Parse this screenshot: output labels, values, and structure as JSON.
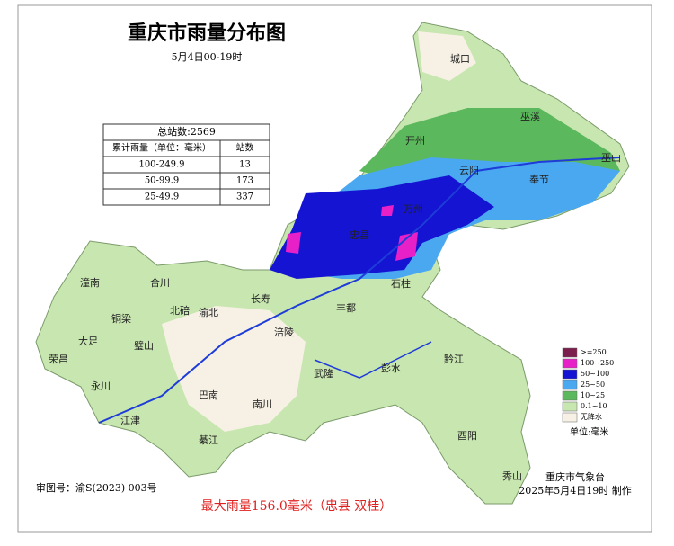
{
  "header": {
    "title": "重庆市雨量分布图",
    "subtitle": "5月4日00-19时"
  },
  "table": {
    "title": "总站数:2569",
    "columns": [
      "累计雨量（单位：毫米）",
      "站数"
    ],
    "rows": [
      [
        "100-249.9",
        13
      ],
      [
        "50-99.9",
        173
      ],
      [
        "25-49.9",
        337
      ]
    ]
  },
  "legend": {
    "items": [
      {
        "label": ">=250",
        "color": "#7b1e4e"
      },
      {
        "label": "100~250",
        "color": "#e820c8"
      },
      {
        "label": "50~100",
        "color": "#1414d2"
      },
      {
        "label": "25~50",
        "color": "#4aa8f0"
      },
      {
        "label": "10~25",
        "color": "#5cb85c"
      },
      {
        "label": "0.1~10",
        "color": "#c8e6b0"
      },
      {
        "label": "无降水",
        "color": "#f6f1e4"
      }
    ],
    "unit": "单位:毫米"
  },
  "places": [
    "城口",
    "巫溪",
    "开州",
    "巫山",
    "云阳",
    "奉节",
    "万州",
    "忠县",
    "石柱",
    "丰都",
    "长寿",
    "潼南",
    "合川",
    "铜梁",
    "北碚",
    "渝北",
    "大足",
    "璧山",
    "荣昌",
    "永川",
    "江津",
    "巴南",
    "涪陵",
    "武隆",
    "彭水",
    "黔江",
    "南川",
    "綦江",
    "酉阳",
    "秀山"
  ],
  "footer": {
    "review": "审图号：渝S(2023) 003号",
    "max": "最大雨量156.0毫米（忠县 双桂）",
    "agency": "重庆市气象台",
    "time": "2025年5月4日19时 制作"
  }
}
